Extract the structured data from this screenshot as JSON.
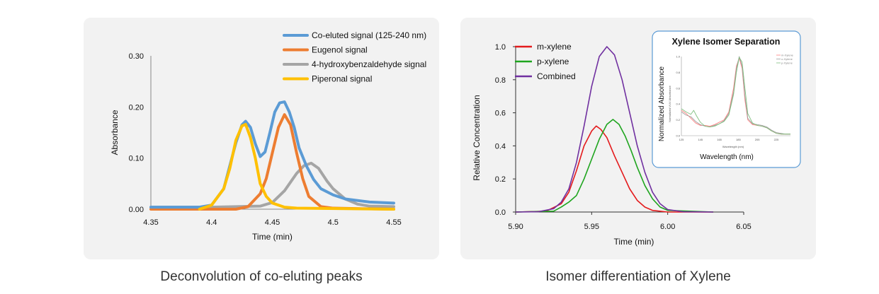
{
  "captions": {
    "left": "Deconvolution of co-eluting peaks",
    "right": "Isomer differentiation of Xylene"
  },
  "chart_data": [
    {
      "type": "line",
      "xlabel": "Time (min)",
      "ylabel": "Absorbance",
      "xlim": [
        4.35,
        4.55
      ],
      "ylim": [
        0,
        0.3
      ],
      "xticks": [
        4.35,
        4.4,
        4.45,
        4.5,
        4.55
      ],
      "xtick_labels": [
        "4.35",
        "4.4",
        "4.45",
        "4.5",
        "4.55"
      ],
      "yticks": [
        0,
        0.1,
        0.2,
        0.3
      ],
      "ytick_labels": [
        "0.00",
        "0.10",
        "0.20",
        "0.30"
      ],
      "legend_position": "top-right",
      "grid": false,
      "series": [
        {
          "name": "Co-eluted signal (125-240 nm)",
          "color": "#5b9bd5",
          "x": [
            4.35,
            4.39,
            4.4,
            4.41,
            4.42,
            4.425,
            4.428,
            4.432,
            4.436,
            4.44,
            4.444,
            4.448,
            4.452,
            4.456,
            4.46,
            4.464,
            4.468,
            4.472,
            4.478,
            4.484,
            4.49,
            4.5,
            4.51,
            4.53,
            4.55
          ],
          "y": [
            0.004,
            0.004,
            0.008,
            0.04,
            0.13,
            0.165,
            0.172,
            0.16,
            0.128,
            0.103,
            0.112,
            0.15,
            0.19,
            0.208,
            0.21,
            0.19,
            0.16,
            0.12,
            0.085,
            0.058,
            0.04,
            0.028,
            0.02,
            0.014,
            0.012
          ]
        },
        {
          "name": "Eugenol signal",
          "color": "#ed7d31",
          "x": [
            4.35,
            4.42,
            4.43,
            4.44,
            4.445,
            4.45,
            4.455,
            4.46,
            4.465,
            4.47,
            4.475,
            4.48,
            4.49,
            4.5,
            4.55
          ],
          "y": [
            0.0,
            0.0,
            0.005,
            0.03,
            0.06,
            0.11,
            0.16,
            0.185,
            0.165,
            0.11,
            0.06,
            0.025,
            0.005,
            0.002,
            0.0
          ]
        },
        {
          "name": "4-hydroxybenzaldehyde signal",
          "color": "#a5a5a5",
          "x": [
            4.35,
            4.4,
            4.44,
            4.45,
            4.46,
            4.47,
            4.476,
            4.482,
            4.488,
            4.495,
            4.5,
            4.51,
            4.52,
            4.53,
            4.55
          ],
          "y": [
            0.004,
            0.004,
            0.006,
            0.013,
            0.036,
            0.07,
            0.085,
            0.09,
            0.08,
            0.055,
            0.04,
            0.02,
            0.01,
            0.006,
            0.005
          ]
        },
        {
          "name": "Piperonal signal",
          "color": "#ffc000",
          "x": [
            4.39,
            4.4,
            4.41,
            4.415,
            4.42,
            4.425,
            4.428,
            4.432,
            4.436,
            4.44,
            4.445,
            4.45,
            4.46,
            4.47,
            4.55
          ],
          "y": [
            0.0,
            0.008,
            0.04,
            0.08,
            0.135,
            0.163,
            0.166,
            0.14,
            0.1,
            0.05,
            0.025,
            0.012,
            0.004,
            0.002,
            0.0
          ]
        }
      ]
    },
    {
      "type": "line",
      "xlabel": "Time (min)",
      "ylabel": "Relative Concentration",
      "xlim": [
        5.9,
        6.05
      ],
      "ylim": [
        0,
        1.0
      ],
      "xticks": [
        5.9,
        5.95,
        6.0,
        6.05
      ],
      "xtick_labels": [
        "5.90",
        "5.95",
        "6.00",
        "6.05"
      ],
      "yticks": [
        0,
        0.2,
        0.4,
        0.6,
        0.8,
        1.0
      ],
      "ytick_labels": [
        "0.0",
        "0.2",
        "0.4",
        "0.6",
        "0.8",
        "1.0"
      ],
      "legend_position": "top-left",
      "grid": false,
      "series": [
        {
          "name": "m-xylene",
          "color": "#e41a1c",
          "x": [
            5.9,
            5.92,
            5.93,
            5.935,
            5.94,
            5.945,
            5.95,
            5.953,
            5.956,
            5.96,
            5.965,
            5.97,
            5.975,
            5.98,
            5.985,
            5.99,
            6.0,
            6.03
          ],
          "y": [
            0.0,
            0.005,
            0.05,
            0.12,
            0.25,
            0.4,
            0.49,
            0.52,
            0.5,
            0.45,
            0.34,
            0.24,
            0.14,
            0.07,
            0.03,
            0.01,
            0.0,
            0.0
          ]
        },
        {
          "name": "p-xylene",
          "color": "#1fa51f",
          "x": [
            5.9,
            5.925,
            5.93,
            5.935,
            5.94,
            5.945,
            5.95,
            5.955,
            5.96,
            5.964,
            5.968,
            5.972,
            5.976,
            5.98,
            5.985,
            5.99,
            5.995,
            6.0,
            6.03
          ],
          "y": [
            0.0,
            0.005,
            0.03,
            0.06,
            0.1,
            0.2,
            0.32,
            0.44,
            0.53,
            0.56,
            0.53,
            0.46,
            0.37,
            0.27,
            0.16,
            0.08,
            0.03,
            0.01,
            0.0
          ]
        },
        {
          "name": "Combined",
          "color": "#7030a0",
          "x": [
            5.9,
            5.915,
            5.925,
            5.93,
            5.935,
            5.94,
            5.945,
            5.95,
            5.955,
            5.96,
            5.965,
            5.97,
            5.975,
            5.98,
            5.985,
            5.99,
            5.995,
            6.0,
            6.01,
            6.03
          ],
          "y": [
            0.0,
            0.002,
            0.02,
            0.06,
            0.14,
            0.3,
            0.52,
            0.76,
            0.94,
            1.0,
            0.95,
            0.8,
            0.6,
            0.4,
            0.24,
            0.12,
            0.05,
            0.015,
            0.002,
            0.0
          ]
        }
      ]
    },
    {
      "type": "line",
      "title": "Xylene Isomer Separation",
      "xlabel": "Wavelength (nm)",
      "ylabel": "Normalized Absorbance",
      "inner_xlabel": "Wavelength (nm)",
      "inner_ylabel": "Normalized VUV Absorbance",
      "xlim": [
        125,
        240
      ],
      "ylim": [
        0,
        1.0
      ],
      "xticks": [
        125,
        145,
        165,
        185,
        205,
        225
      ],
      "xtick_labels": [
        "125",
        "145",
        "165",
        "185",
        "205",
        "225"
      ],
      "yticks": [
        0,
        0.2,
        0.4,
        0.6,
        0.8,
        1.0
      ],
      "ytick_labels": [
        "0.0",
        "0.2",
        "0.4",
        "0.6",
        "0.8",
        "1.0"
      ],
      "legend_position": "top-right",
      "grid": false,
      "series": [
        {
          "name": "m-Xylene",
          "color": "#ff7f7f",
          "x": [
            125,
            130,
            135,
            140,
            145,
            150,
            155,
            160,
            165,
            170,
            175,
            180,
            183,
            186,
            189,
            192,
            195,
            200,
            205,
            210,
            215,
            220,
            225,
            230,
            235,
            240
          ],
          "y": [
            0.32,
            0.28,
            0.22,
            0.16,
            0.13,
            0.13,
            0.12,
            0.14,
            0.17,
            0.2,
            0.3,
            0.6,
            0.88,
            0.98,
            0.85,
            0.45,
            0.2,
            0.14,
            0.13,
            0.12,
            0.1,
            0.06,
            0.03,
            0.02,
            0.02,
            0.02
          ]
        },
        {
          "name": "o-Xylene",
          "color": "#9e9e9e",
          "x": [
            125,
            130,
            135,
            140,
            145,
            150,
            155,
            160,
            165,
            170,
            175,
            180,
            183,
            186,
            189,
            192,
            195,
            200,
            205,
            210,
            215,
            220,
            225,
            230,
            235,
            240
          ],
          "y": [
            0.3,
            0.26,
            0.24,
            0.18,
            0.14,
            0.12,
            0.11,
            0.13,
            0.15,
            0.19,
            0.28,
            0.55,
            0.85,
            1.0,
            0.88,
            0.5,
            0.22,
            0.15,
            0.14,
            0.13,
            0.11,
            0.07,
            0.04,
            0.03,
            0.02,
            0.02
          ]
        },
        {
          "name": "p-Xylene",
          "color": "#7fbf7f",
          "x": [
            125,
            130,
            135,
            138,
            141,
            145,
            150,
            155,
            160,
            165,
            170,
            175,
            180,
            183,
            186,
            189,
            192,
            195,
            200,
            205,
            210,
            215,
            220,
            225,
            230,
            235,
            240
          ],
          "y": [
            0.34,
            0.3,
            0.27,
            0.32,
            0.25,
            0.17,
            0.12,
            0.11,
            0.12,
            0.15,
            0.18,
            0.26,
            0.52,
            0.8,
            0.99,
            0.93,
            0.6,
            0.28,
            0.16,
            0.13,
            0.12,
            0.1,
            0.06,
            0.03,
            0.02,
            0.02,
            0.02
          ]
        }
      ]
    }
  ]
}
